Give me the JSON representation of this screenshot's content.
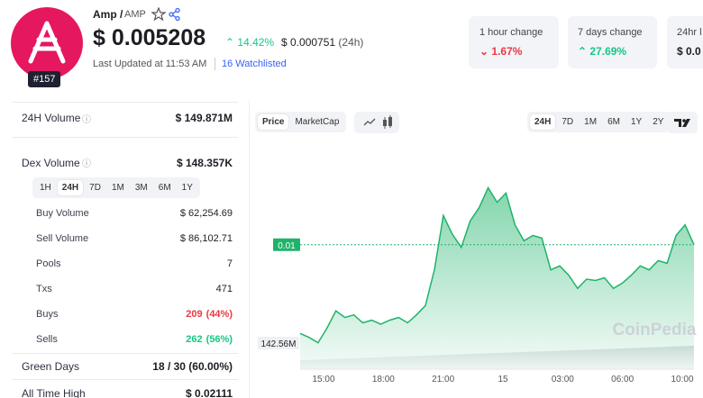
{
  "header": {
    "name": "Amp /",
    "symbol": "AMP",
    "rank": "#157",
    "price": "$ 0.005208",
    "change_24h": "14.42%",
    "change_abs": "$ 0.000751",
    "change_period": "(24h)",
    "updated": "Last Updated at 11:53 AM",
    "watchlisted": "16 Watchlisted"
  },
  "cards": [
    {
      "label": "1 hour change",
      "value": "1.67%"
    },
    {
      "label": "7 days change",
      "value": "27.69%"
    },
    {
      "label": "24hr l",
      "value": "$ 0.0"
    }
  ],
  "stats": {
    "volume_24h": {
      "label": "24H Volume",
      "value": "$ 149.871M"
    },
    "dex_volume": {
      "label": "Dex Volume",
      "value": "$ 148.357K"
    },
    "periods": [
      "1H",
      "24H",
      "7D",
      "1M",
      "3M",
      "6M",
      "1Y"
    ],
    "rows": [
      {
        "label": "Buy Volume",
        "value": "$ 62,254.69"
      },
      {
        "label": "Sell Volume",
        "value": "$ 86,102.71"
      },
      {
        "label": "Pools",
        "value": "7"
      },
      {
        "label": "Txs",
        "value": "471"
      },
      {
        "label": "Buys",
        "value": "209",
        "extra": "(44%)"
      },
      {
        "label": "Sells",
        "value": "262",
        "extra": "(56%)"
      }
    ],
    "green_days": {
      "label": "Green Days",
      "value": "18 / 30 (60.00%)"
    },
    "ath": {
      "label": "All Time High",
      "value": "$ 0.02111"
    }
  },
  "toolbar": {
    "modes": [
      "Price",
      "MarketCap"
    ],
    "ranges": [
      "24H",
      "7D",
      "1M",
      "6M",
      "1Y",
      "2Y"
    ]
  },
  "chart_data": {
    "type": "area",
    "values": [
      0.00457,
      0.00454,
      0.0045,
      0.00461,
      0.00474,
      0.00469,
      0.00471,
      0.00465,
      0.00467,
      0.00464,
      0.00467,
      0.00469,
      0.00465,
      0.00471,
      0.00478,
      0.00505,
      0.00546,
      0.00532,
      0.00522,
      0.00542,
      0.00552,
      0.00567,
      0.00556,
      0.00563,
      0.00539,
      0.00527,
      0.00531,
      0.00529,
      0.00505,
      0.00508,
      0.00501,
      0.00491,
      0.00498,
      0.00497,
      0.00499,
      0.00491,
      0.00495,
      0.00501,
      0.00508,
      0.00505,
      0.00512,
      0.0051,
      0.00531,
      0.00539,
      0.00524
    ],
    "color": "#1fb36a",
    "ylim": [
      0.0043,
      0.006
    ],
    "price_marker": {
      "value": 0.00524,
      "label": "0.01"
    },
    "xtick_labels": [
      "15:00",
      "18:00",
      "21:00",
      "15",
      "03:00",
      "06:00",
      "10:00"
    ],
    "volume_label": "142.56M",
    "watermark": "CoinPedia"
  }
}
